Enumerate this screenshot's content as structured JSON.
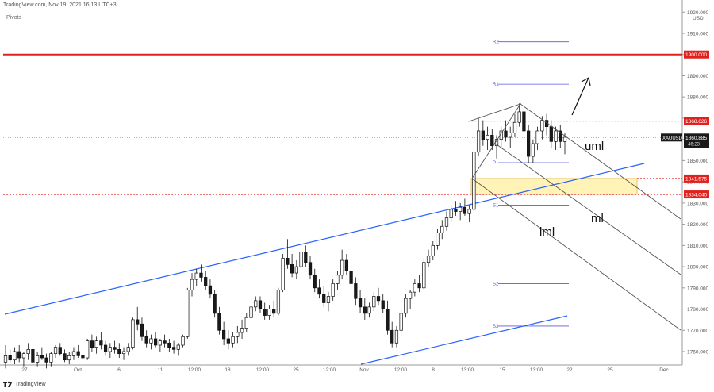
{
  "header": {
    "source": "TradingView.com, Nov 19, 2021 16:13 UTC+3",
    "indicator": "Pivots"
  },
  "footer": {
    "brand": "TradingView"
  },
  "chart_data": {
    "type": "candlestick",
    "symbol": "XAUUSD",
    "currency": "USD",
    "ylim": [
      1755,
      1920
    ],
    "y_ticks": [
      1760,
      1770,
      1780,
      1790,
      1800,
      1810,
      1820,
      1830,
      1840,
      1850,
      1860,
      1870,
      1880,
      1890,
      1900,
      1910,
      1920
    ],
    "y_tick_labels": [
      "1760.000",
      "1770.000",
      "1780.000",
      "1790.000",
      "1800.000",
      "1810.000",
      "1820.000",
      "1830.000",
      "1840.000",
      "1850.000",
      "1860.000",
      "1870.000",
      "1880.000",
      "1890.000",
      "1900.000",
      "1910.000",
      "1920.000"
    ],
    "x_tick_labels": [
      "27",
      "Oct",
      "6",
      "11",
      "12:00",
      "18",
      "12:00",
      "25",
      "12:00",
      "Nov",
      "12:00",
      "8",
      "13:00",
      "15",
      "13:00",
      "22",
      "25",
      "Dec"
    ],
    "grid": false,
    "current_price": {
      "label": "XAUUSD",
      "value": "1860.885",
      "countdown": "46:23"
    },
    "price_labels": [
      {
        "value": "1900.000",
        "color": "#e0211d"
      },
      {
        "value": "1868.626",
        "color": "#e0211d"
      },
      {
        "value": "1841.575",
        "color": "#e0211d"
      },
      {
        "value": "1834.040",
        "color": "#e0211d"
      }
    ],
    "pivots": [
      {
        "name": "R2",
        "value": 1906.0
      },
      {
        "name": "R1",
        "value": 1886.0
      },
      {
        "name": "P",
        "value": 1849.0
      },
      {
        "name": "S1",
        "value": 1829.0
      },
      {
        "name": "S2",
        "value": 1792.0
      },
      {
        "name": "S3",
        "value": 1772.0
      }
    ],
    "annotations": [
      "uml",
      "ml",
      "lml"
    ],
    "colors": {
      "up": "#ffffff",
      "down": "#1a1a1a",
      "trendline": "#2962ff",
      "level": "#e0211d",
      "zone": "#fff3b8",
      "pivot": "#5a5adc",
      "pitchfork": "#555555"
    },
    "ohlc": [
      [
        1755,
        1763,
        1752,
        1758
      ],
      [
        1758,
        1761,
        1755,
        1756
      ],
      [
        1756,
        1762,
        1754,
        1760
      ],
      [
        1760,
        1763,
        1755,
        1757
      ],
      [
        1757,
        1760,
        1753,
        1759
      ],
      [
        1759,
        1764,
        1756,
        1761
      ],
      [
        1761,
        1763,
        1754,
        1755
      ],
      [
        1755,
        1760,
        1753,
        1758
      ],
      [
        1758,
        1762,
        1756,
        1757
      ],
      [
        1757,
        1759,
        1752,
        1755
      ],
      [
        1755,
        1760,
        1753,
        1759
      ],
      [
        1759,
        1763,
        1757,
        1762
      ],
      [
        1762,
        1764,
        1758,
        1759
      ],
      [
        1759,
        1761,
        1755,
        1756
      ],
      [
        1756,
        1760,
        1754,
        1758
      ],
      [
        1758,
        1762,
        1756,
        1760
      ],
      [
        1760,
        1763,
        1757,
        1758
      ],
      [
        1758,
        1760,
        1755,
        1757
      ],
      [
        1757,
        1766,
        1756,
        1765
      ],
      [
        1765,
        1768,
        1760,
        1762
      ],
      [
        1762,
        1767,
        1759,
        1765
      ],
      [
        1765,
        1769,
        1761,
        1763
      ],
      [
        1763,
        1765,
        1758,
        1760
      ],
      [
        1760,
        1764,
        1757,
        1762
      ],
      [
        1762,
        1765,
        1759,
        1761
      ],
      [
        1761,
        1764,
        1757,
        1759
      ],
      [
        1759,
        1762,
        1756,
        1760
      ],
      [
        1760,
        1764,
        1758,
        1762
      ],
      [
        1762,
        1776,
        1761,
        1775
      ],
      [
        1775,
        1781,
        1770,
        1773
      ],
      [
        1773,
        1776,
        1765,
        1767
      ],
      [
        1767,
        1770,
        1762,
        1764
      ],
      [
        1764,
        1768,
        1761,
        1766
      ],
      [
        1766,
        1769,
        1762,
        1763
      ],
      [
        1763,
        1766,
        1760,
        1765
      ],
      [
        1765,
        1768,
        1762,
        1764
      ],
      [
        1764,
        1766,
        1760,
        1762
      ],
      [
        1762,
        1765,
        1759,
        1761
      ],
      [
        1761,
        1764,
        1758,
        1763
      ],
      [
        1763,
        1768,
        1762,
        1767
      ],
      [
        1767,
        1790,
        1766,
        1789
      ],
      [
        1789,
        1797,
        1786,
        1794
      ],
      [
        1794,
        1799,
        1791,
        1797
      ],
      [
        1797,
        1801,
        1793,
        1795
      ],
      [
        1795,
        1798,
        1789,
        1791
      ],
      [
        1791,
        1794,
        1785,
        1787
      ],
      [
        1787,
        1789,
        1776,
        1778
      ],
      [
        1778,
        1781,
        1768,
        1770
      ],
      [
        1770,
        1774,
        1763,
        1766
      ],
      [
        1766,
        1770,
        1761,
        1764
      ],
      [
        1764,
        1769,
        1762,
        1767
      ],
      [
        1767,
        1772,
        1764,
        1769
      ],
      [
        1769,
        1775,
        1766,
        1771
      ],
      [
        1771,
        1778,
        1769,
        1776
      ],
      [
        1776,
        1783,
        1774,
        1781
      ],
      [
        1781,
        1786,
        1779,
        1784
      ],
      [
        1784,
        1786,
        1778,
        1780
      ],
      [
        1780,
        1783,
        1775,
        1777
      ],
      [
        1777,
        1782,
        1775,
        1780
      ],
      [
        1780,
        1784,
        1776,
        1778
      ],
      [
        1778,
        1790,
        1777,
        1789
      ],
      [
        1789,
        1806,
        1788,
        1804
      ],
      [
        1804,
        1813,
        1799,
        1801
      ],
      [
        1801,
        1806,
        1795,
        1797
      ],
      [
        1797,
        1803,
        1794,
        1800
      ],
      [
        1800,
        1810,
        1798,
        1807
      ],
      [
        1807,
        1810,
        1800,
        1802
      ],
      [
        1802,
        1805,
        1794,
        1796
      ],
      [
        1796,
        1799,
        1788,
        1790
      ],
      [
        1790,
        1794,
        1785,
        1787
      ],
      [
        1787,
        1791,
        1781,
        1783
      ],
      [
        1783,
        1788,
        1779,
        1786
      ],
      [
        1786,
        1794,
        1784,
        1792
      ],
      [
        1792,
        1798,
        1789,
        1796
      ],
      [
        1796,
        1808,
        1794,
        1803
      ],
      [
        1803,
        1806,
        1796,
        1798
      ],
      [
        1798,
        1801,
        1790,
        1792
      ],
      [
        1792,
        1795,
        1782,
        1785
      ],
      [
        1785,
        1789,
        1778,
        1781
      ],
      [
        1781,
        1785,
        1775,
        1778
      ],
      [
        1778,
        1783,
        1776,
        1781
      ],
      [
        1781,
        1788,
        1779,
        1786
      ],
      [
        1786,
        1790,
        1782,
        1784
      ],
      [
        1784,
        1787,
        1778,
        1780
      ],
      [
        1780,
        1784,
        1768,
        1770
      ],
      [
        1770,
        1774,
        1762,
        1764
      ],
      [
        1764,
        1772,
        1762,
        1770
      ],
      [
        1770,
        1780,
        1768,
        1778
      ],
      [
        1778,
        1787,
        1776,
        1785
      ],
      [
        1785,
        1789,
        1780,
        1788
      ],
      [
        1788,
        1794,
        1786,
        1792
      ],
      [
        1792,
        1796,
        1788,
        1790
      ],
      [
        1790,
        1804,
        1789,
        1802
      ],
      [
        1802,
        1808,
        1800,
        1805
      ],
      [
        1805,
        1812,
        1803,
        1810
      ],
      [
        1810,
        1818,
        1808,
        1816
      ],
      [
        1816,
        1822,
        1813,
        1819
      ],
      [
        1819,
        1826,
        1817,
        1823
      ],
      [
        1823,
        1829,
        1821,
        1827
      ],
      [
        1827,
        1831,
        1824,
        1826
      ],
      [
        1826,
        1830,
        1822,
        1828
      ],
      [
        1828,
        1832,
        1824,
        1825
      ],
      [
        1825,
        1829,
        1821,
        1827
      ],
      [
        1827,
        1856,
        1826,
        1854
      ],
      [
        1854,
        1870,
        1852,
        1864
      ],
      [
        1864,
        1869,
        1857,
        1860
      ],
      [
        1860,
        1866,
        1855,
        1862
      ],
      [
        1862,
        1865,
        1855,
        1857
      ],
      [
        1857,
        1862,
        1851,
        1860
      ],
      [
        1860,
        1866,
        1856,
        1864
      ],
      [
        1864,
        1869,
        1859,
        1861
      ],
      [
        1861,
        1866,
        1856,
        1863
      ],
      [
        1863,
        1872,
        1861,
        1868
      ],
      [
        1868,
        1877,
        1866,
        1873
      ],
      [
        1873,
        1875,
        1862,
        1864
      ],
      [
        1864,
        1867,
        1849,
        1852
      ],
      [
        1852,
        1860,
        1849,
        1858
      ],
      [
        1858,
        1866,
        1855,
        1864
      ],
      [
        1864,
        1871,
        1860,
        1869
      ],
      [
        1869,
        1872,
        1862,
        1866
      ],
      [
        1866,
        1869,
        1856,
        1859
      ],
      [
        1859,
        1866,
        1855,
        1864
      ],
      [
        1864,
        1867,
        1856,
        1859
      ],
      [
        1859,
        1863,
        1853,
        1861
      ]
    ]
  }
}
